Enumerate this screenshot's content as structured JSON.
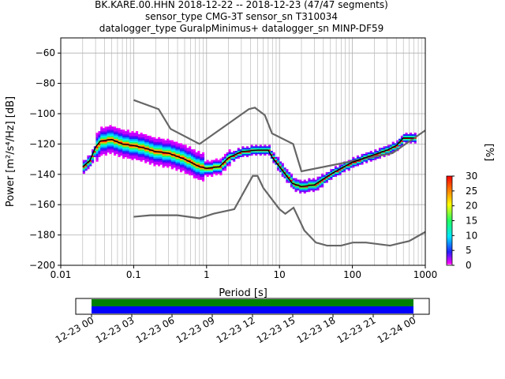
{
  "chart_data": [
    {
      "type": "heatmap",
      "title_lines": [
        "BK.KARE.00.HHN   2018-12-22 -- 2018-12-23  (47/47 segments)",
        "sensor_type CMG-3T sensor_sn T310034",
        "datalogger_type GuralpMinimus+ datalogger_sn MINP-DF59"
      ],
      "xlabel": "Period [s]",
      "ylabel": "Power [m²/s⁴/Hz] [dB]",
      "xscale": "log",
      "xlim": [
        0.01,
        1000
      ],
      "ylim": [
        -200,
        -50
      ],
      "x_ticks": [
        {
          "v": 0.01,
          "label": "0.01"
        },
        {
          "v": 0.1,
          "label": "0.1"
        },
        {
          "v": 1,
          "label": "1"
        },
        {
          "v": 10,
          "label": "10"
        },
        {
          "v": 100,
          "label": "100"
        },
        {
          "v": 1000,
          "label": "1000"
        }
      ],
      "y_ticks": [
        {
          "v": -60,
          "label": "−60"
        },
        {
          "v": -80,
          "label": "−80"
        },
        {
          "v": -100,
          "label": "−100"
        },
        {
          "v": -120,
          "label": "−120"
        },
        {
          "v": -140,
          "label": "−140"
        },
        {
          "v": -160,
          "label": "−160"
        },
        {
          "v": -180,
          "label": "−180"
        },
        {
          "v": -200,
          "label": "−200"
        }
      ],
      "grid": true,
      "colorbar": {
        "label": "[%]",
        "range": [
          0,
          30
        ],
        "ticks": [
          {
            "v": 0,
            "label": "0"
          },
          {
            "v": 5,
            "label": "5"
          },
          {
            "v": 10,
            "label": "10"
          },
          {
            "v": 15,
            "label": "15"
          },
          {
            "v": 20,
            "label": "20"
          },
          {
            "v": 25,
            "label": "25"
          },
          {
            "v": 30,
            "label": "30"
          }
        ]
      },
      "series": [
        {
          "role": "noise-model-high",
          "color": "#666666",
          "points": [
            [
              0.1,
              -91
            ],
            [
              0.22,
              -97
            ],
            [
              0.32,
              -110
            ],
            [
              0.8,
              -120
            ],
            [
              3.8,
              -97
            ],
            [
              4.6,
              -96
            ],
            [
              6.3,
              -101
            ],
            [
              7.9,
              -113
            ],
            [
              15.4,
              -120
            ],
            [
              20,
              -138
            ],
            [
              354.8,
              -126
            ],
            [
              1000,
              -111
            ]
          ]
        },
        {
          "role": "noise-model-low",
          "color": "#666666",
          "points": [
            [
              0.1,
              -168
            ],
            [
              0.17,
              -167
            ],
            [
              0.4,
              -167
            ],
            [
              0.8,
              -169
            ],
            [
              1.24,
              -166
            ],
            [
              2.4,
              -163
            ],
            [
              4.3,
              -141
            ],
            [
              5,
              -141
            ],
            [
              6,
              -149
            ],
            [
              10,
              -163
            ],
            [
              12,
              -166
            ],
            [
              15.6,
              -162
            ],
            [
              21.9,
              -177
            ],
            [
              31.6,
              -185
            ],
            [
              45,
              -187
            ],
            [
              70,
              -187
            ],
            [
              101,
              -185
            ],
            [
              154,
              -185
            ],
            [
              328,
              -187
            ],
            [
              600,
              -184
            ],
            [
              1000,
              -178
            ]
          ]
        },
        {
          "role": "mode-curve",
          "color": "#000000",
          "points": [
            [
              0.02,
              -135
            ],
            [
              0.025,
              -131
            ],
            [
              0.03,
              -122
            ],
            [
              0.035,
              -118
            ],
            [
              0.05,
              -117
            ],
            [
              0.07,
              -120
            ],
            [
              0.1,
              -121
            ],
            [
              0.15,
              -123
            ],
            [
              0.2,
              -125
            ],
            [
              0.3,
              -126
            ],
            [
              0.5,
              -130
            ],
            [
              0.8,
              -135
            ],
            [
              1,
              -136
            ],
            [
              1.5,
              -135
            ],
            [
              2,
              -129
            ],
            [
              3,
              -125
            ],
            [
              5,
              -124
            ],
            [
              7,
              -124
            ],
            [
              8,
              -129
            ],
            [
              10,
              -135
            ],
            [
              15,
              -146
            ],
            [
              20,
              -148
            ],
            [
              30,
              -147
            ],
            [
              50,
              -140
            ],
            [
              70,
              -136
            ],
            [
              100,
              -132
            ],
            [
              150,
              -129
            ],
            [
              200,
              -127
            ],
            [
              300,
              -124
            ],
            [
              400,
              -121
            ],
            [
              500,
              -116
            ],
            [
              700,
              -116
            ]
          ]
        }
      ]
    },
    {
      "type": "timeline",
      "ticks": [
        {
          "frac": 0.0,
          "label": "12-23 00"
        },
        {
          "frac": 0.125,
          "label": "12-23 03"
        },
        {
          "frac": 0.25,
          "label": "12-23 06"
        },
        {
          "frac": 0.375,
          "label": "12-23 09"
        },
        {
          "frac": 0.5,
          "label": "12-23 12"
        },
        {
          "frac": 0.625,
          "label": "12-23 15"
        },
        {
          "frac": 0.75,
          "label": "12-23 18"
        },
        {
          "frac": 0.875,
          "label": "12-23 21"
        },
        {
          "frac": 1.0,
          "label": "12-24 00"
        }
      ],
      "bands": [
        {
          "name": "data",
          "color": "#008000"
        },
        {
          "name": "used",
          "color": "#0000ff"
        }
      ]
    }
  ]
}
